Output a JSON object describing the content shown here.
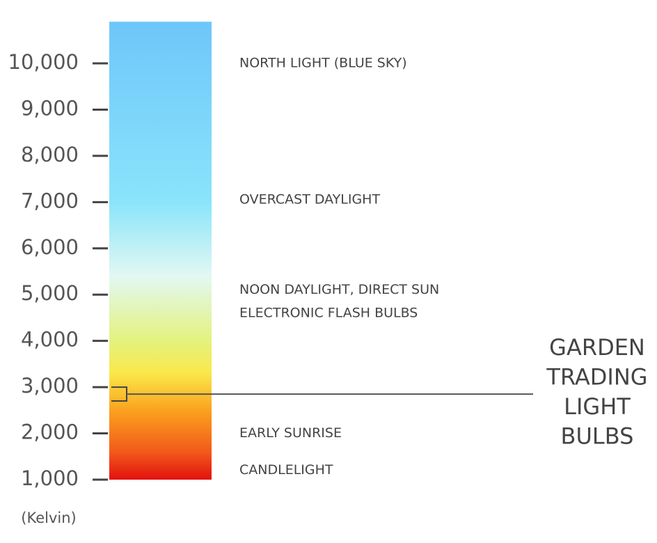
{
  "chart_data": {
    "type": "color-scale",
    "axis_label": "(Kelvin)",
    "ylim": [
      1000,
      10900
    ],
    "yticks": [
      {
        "value": 1000,
        "label": "1,000"
      },
      {
        "value": 2000,
        "label": "2,000"
      },
      {
        "value": 3000,
        "label": "3,000"
      },
      {
        "value": 4000,
        "label": "4,000"
      },
      {
        "value": 5000,
        "label": "5,000"
      },
      {
        "value": 6000,
        "label": "6,000"
      },
      {
        "value": 7000,
        "label": "7,000"
      },
      {
        "value": 8000,
        "label": "8,000"
      },
      {
        "value": 9000,
        "label": "9,000"
      },
      {
        "value": 10000,
        "label": "10,000"
      }
    ],
    "gradient": [
      {
        "value": 1000,
        "color": "#e3110f"
      },
      {
        "value": 1600,
        "color": "#f25a1a"
      },
      {
        "value": 2500,
        "color": "#fba21e"
      },
      {
        "value": 3300,
        "color": "#f9e84a"
      },
      {
        "value": 4000,
        "color": "#e4f27e"
      },
      {
        "value": 5400,
        "color": "#e2f8f2"
      },
      {
        "value": 7000,
        "color": "#8ae4fb"
      },
      {
        "value": 10900,
        "color": "#6ec6f9"
      }
    ],
    "annotations": [
      {
        "text": "NORTH LIGHT (BLUE SKY)",
        "value": 10000
      },
      {
        "text": "OVERCAST DAYLIGHT",
        "value": 7050
      },
      {
        "text": "NOON DAYLIGHT, DIRECT SUN",
        "value": 5100
      },
      {
        "text": "ELECTRONIC FLASH BULBS",
        "value": 4600
      },
      {
        "text": "EARLY SUNRISE",
        "value": 2000
      },
      {
        "text": "CANDLELIGHT",
        "value": 1200
      }
    ],
    "highlight": {
      "range": [
        2700,
        3000
      ],
      "value": 2850,
      "lines": [
        "GARDEN",
        "TRADING",
        "LIGHT",
        "BULBS"
      ]
    }
  }
}
